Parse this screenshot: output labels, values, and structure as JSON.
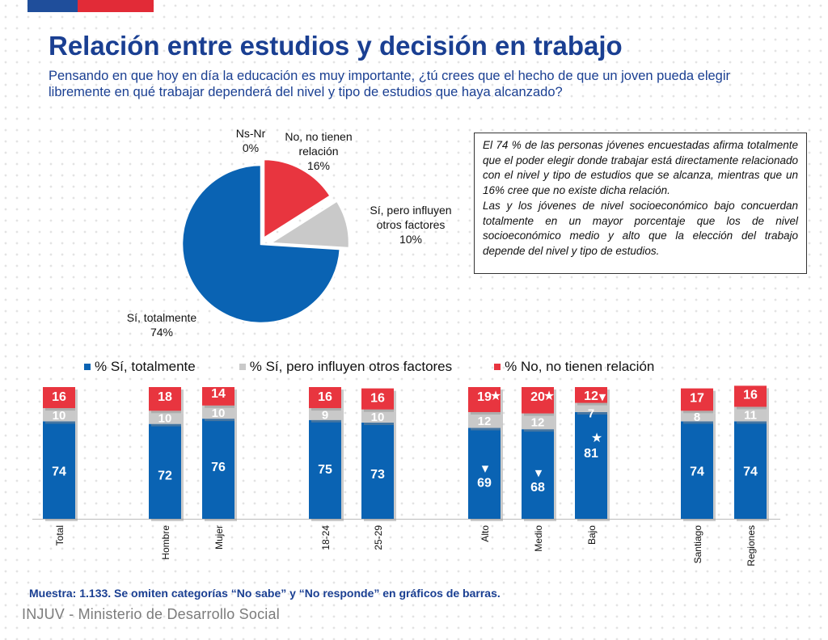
{
  "page": {
    "title": "Relación entre estudios y decisión en trabajo",
    "subtitle": "Pensando en que hoy en día la educación es muy importante, ¿tú crees que el hecho de que un joven pueda elegir libremente en qué trabajar dependerá del nivel y tipo de estudios que haya alcanzado?",
    "footnote": "Muestra: 1.133. Se omiten categorías “No sabe” y “No responde” en gráficos de barras.",
    "logo": "INJUV - Ministerio de Desarrollo Social"
  },
  "colors": {
    "blue": "#0a63b3",
    "gray": "#c9c9c9",
    "red": "#e8353f",
    "title_blue": "#1a3f92",
    "brand_red": "#e22b37"
  },
  "textbox": {
    "p1": "El 74 % de las personas jóvenes encuestadas afirma totalmente que el poder elegir donde trabajar está directamente relacionado con el nivel y tipo de estudios que se alcanza, mientras que un 16% cree que no existe dicha relación.",
    "p2": "Las y los jóvenes de nivel socioeconómico bajo concuerdan totalmente en un mayor porcentaje que los de nivel socioeconómico medio y alto que la elección del trabajo depende del nivel y tipo de estudios."
  },
  "pie_labels": {
    "nsnr": [
      "Ns-Nr",
      "0%"
    ],
    "no": [
      "No, no tienen",
      "relación",
      "16%"
    ],
    "si_pero": [
      "Sí, pero influyen",
      "otros factores",
      "10%"
    ],
    "si_tot": [
      "Sí, totalmente",
      "74%"
    ]
  },
  "legend": [
    "% Sí, totalmente",
    "% Sí, pero influyen otros factores",
    "% No, no tienen relación"
  ],
  "chart_data": [
    {
      "type": "pie",
      "categories": [
        "Sí, totalmente",
        "Sí, pero influyen otros factores",
        "No, no tienen relación",
        "Ns-Nr"
      ],
      "values": [
        74,
        10,
        16,
        0
      ],
      "colors": [
        "#0a63b3",
        "#c9c9c9",
        "#e8353f",
        "#ffffff"
      ]
    },
    {
      "type": "bar",
      "stacked": true,
      "categories": [
        "Total",
        "Hombre",
        "Mujer",
        "18-24",
        "25-29",
        "Alto",
        "Medio",
        "Bajo",
        "Santiago",
        "Regiones"
      ],
      "series": [
        {
          "name": "% Sí, totalmente",
          "values": [
            74,
            72,
            76,
            75,
            73,
            69,
            68,
            81,
            74,
            74
          ]
        },
        {
          "name": "% Sí, pero influyen otros factores",
          "values": [
            10,
            10,
            10,
            9,
            10,
            12,
            12,
            7,
            8,
            11
          ]
        },
        {
          "name": "% No, no tienen relación",
          "values": [
            16,
            18,
            14,
            16,
            16,
            19,
            20,
            12,
            17,
            16
          ]
        }
      ],
      "markers": [
        {
          "category": "Alto",
          "series": "% No, no tienen relación",
          "symbol": "★"
        },
        {
          "category": "Medio",
          "series": "% No, no tienen relación",
          "symbol": "★"
        },
        {
          "category": "Bajo",
          "series": "% No, no tienen relación",
          "symbol": "▼"
        },
        {
          "category": "Alto",
          "series": "% Sí, totalmente",
          "symbol": "▼"
        },
        {
          "category": "Medio",
          "series": "% Sí, totalmente",
          "symbol": "▼"
        },
        {
          "category": "Bajo",
          "series": "% Sí, totalmente",
          "symbol": "★"
        }
      ]
    }
  ]
}
